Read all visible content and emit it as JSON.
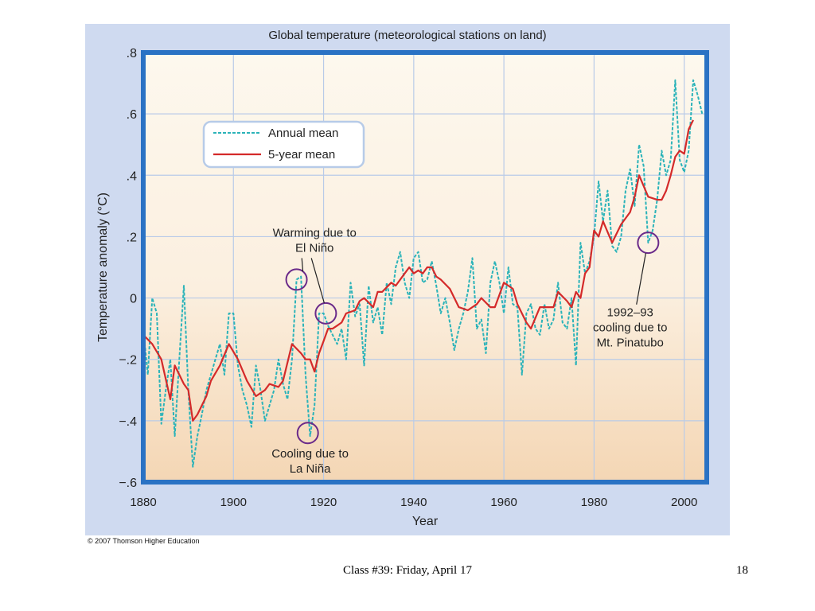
{
  "chart_data": {
    "type": "line",
    "title": "Global temperature (meteorological stations on land)",
    "xlabel": "Year",
    "ylabel": "Temperature anomaly (°C)",
    "xlim": [
      1880,
      2005
    ],
    "ylim": [
      -0.6,
      0.8
    ],
    "x_ticks": [
      1880,
      1900,
      1920,
      1940,
      1960,
      1980,
      2000
    ],
    "y_ticks": [
      -0.6,
      -0.4,
      -0.2,
      0,
      0.2,
      0.4,
      0.6,
      0.8
    ],
    "y_tick_labels": [
      "−.6",
      "−.4",
      "−.2",
      "0",
      ".2",
      ".4",
      ".6",
      ".8"
    ],
    "grid": true,
    "legend_position": "top-left",
    "series": [
      {
        "name": "Annual mean",
        "style": "dashed",
        "color": "#2bb3b9",
        "x": [
          1880,
          1881,
          1882,
          1883,
          1884,
          1885,
          1886,
          1887,
          1888,
          1889,
          1890,
          1891,
          1892,
          1893,
          1894,
          1895,
          1896,
          1897,
          1898,
          1899,
          1900,
          1901,
          1902,
          1903,
          1904,
          1905,
          1906,
          1907,
          1908,
          1909,
          1910,
          1911,
          1912,
          1913,
          1914,
          1915,
          1916,
          1917,
          1918,
          1919,
          1920,
          1921,
          1922,
          1923,
          1924,
          1925,
          1926,
          1927,
          1928,
          1929,
          1930,
          1931,
          1932,
          1933,
          1934,
          1935,
          1936,
          1937,
          1938,
          1939,
          1940,
          1941,
          1942,
          1943,
          1944,
          1945,
          1946,
          1947,
          1948,
          1949,
          1950,
          1951,
          1952,
          1953,
          1954,
          1955,
          1956,
          1957,
          1958,
          1959,
          1960,
          1961,
          1962,
          1963,
          1964,
          1965,
          1966,
          1967,
          1968,
          1969,
          1970,
          1971,
          1972,
          1973,
          1974,
          1975,
          1976,
          1977,
          1978,
          1979,
          1980,
          1981,
          1982,
          1983,
          1984,
          1985,
          1986,
          1987,
          1988,
          1989,
          1990,
          1991,
          1992,
          1993,
          1994,
          1995,
          1996,
          1997,
          1998,
          1999,
          2000,
          2001,
          2002,
          2003,
          2004
        ],
        "values": [
          -0.1,
          -0.25,
          0.0,
          -0.05,
          -0.41,
          -0.3,
          -0.2,
          -0.45,
          -0.2,
          0.04,
          -0.3,
          -0.55,
          -0.45,
          -0.38,
          -0.3,
          -0.25,
          -0.2,
          -0.15,
          -0.25,
          -0.05,
          -0.05,
          -0.22,
          -0.3,
          -0.35,
          -0.42,
          -0.22,
          -0.3,
          -0.4,
          -0.35,
          -0.3,
          -0.2,
          -0.28,
          -0.33,
          -0.2,
          0.06,
          0.07,
          -0.25,
          -0.45,
          -0.35,
          -0.05,
          -0.05,
          -0.09,
          -0.12,
          -0.15,
          -0.1,
          -0.2,
          0.05,
          -0.06,
          -0.02,
          -0.22,
          0.04,
          -0.08,
          -0.03,
          -0.12,
          0.05,
          -0.02,
          0.1,
          0.15,
          0.05,
          0.0,
          0.13,
          0.15,
          0.05,
          0.06,
          0.12,
          0.04,
          -0.05,
          0.0,
          -0.08,
          -0.17,
          -0.1,
          -0.05,
          0.02,
          0.13,
          -0.1,
          -0.07,
          -0.18,
          0.05,
          0.12,
          0.05,
          -0.05,
          0.1,
          -0.02,
          -0.03,
          -0.25,
          -0.05,
          -0.02,
          -0.1,
          -0.12,
          -0.02,
          -0.1,
          -0.07,
          0.05,
          -0.08,
          -0.1,
          0.0,
          -0.22,
          0.18,
          0.08,
          0.12,
          0.2,
          0.38,
          0.25,
          0.35,
          0.17,
          0.15,
          0.2,
          0.35,
          0.42,
          0.3,
          0.5,
          0.43,
          0.18,
          0.22,
          0.32,
          0.48,
          0.4,
          0.45,
          0.71,
          0.45,
          0.41,
          0.48,
          0.71,
          0.66,
          0.6
        ]
      },
      {
        "name": "5-year mean",
        "style": "solid",
        "color": "#d42a2a",
        "x": [
          1880,
          1882,
          1884,
          1886,
          1887,
          1889,
          1890,
          1891,
          1892,
          1894,
          1895,
          1897,
          1899,
          1901,
          1903,
          1905,
          1907,
          1908,
          1910,
          1911,
          1913,
          1915,
          1916,
          1917,
          1918,
          1919,
          1920,
          1921,
          1922,
          1923,
          1924,
          1925,
          1927,
          1928,
          1929,
          1931,
          1932,
          1933,
          1935,
          1936,
          1938,
          1939,
          1940,
          1941,
          1942,
          1943,
          1944,
          1945,
          1946,
          1948,
          1950,
          1952,
          1954,
          1955,
          1957,
          1958,
          1960,
          1962,
          1963,
          1965,
          1966,
          1968,
          1971,
          1972,
          1974,
          1975,
          1976,
          1977,
          1978,
          1979,
          1980,
          1981,
          1982,
          1984,
          1986,
          1988,
          1989,
          1990,
          1992,
          1994,
          1995,
          1996,
          1997,
          1998,
          1999,
          2000,
          2001,
          2002
        ],
        "values": [
          -0.12,
          -0.15,
          -0.2,
          -0.33,
          -0.22,
          -0.28,
          -0.3,
          -0.4,
          -0.38,
          -0.32,
          -0.27,
          -0.22,
          -0.15,
          -0.2,
          -0.27,
          -0.32,
          -0.3,
          -0.28,
          -0.29,
          -0.27,
          -0.15,
          -0.18,
          -0.2,
          -0.2,
          -0.24,
          -0.18,
          -0.14,
          -0.1,
          -0.1,
          -0.09,
          -0.08,
          -0.05,
          -0.04,
          -0.01,
          0.0,
          -0.03,
          0.02,
          0.02,
          0.05,
          0.04,
          0.08,
          0.1,
          0.08,
          0.09,
          0.08,
          0.1,
          0.1,
          0.07,
          0.06,
          0.03,
          -0.03,
          -0.04,
          -0.02,
          0.0,
          -0.03,
          -0.03,
          0.05,
          0.03,
          -0.02,
          -0.08,
          -0.1,
          -0.03,
          -0.03,
          0.02,
          -0.01,
          -0.03,
          0.02,
          0.0,
          0.08,
          0.1,
          0.22,
          0.2,
          0.25,
          0.18,
          0.24,
          0.28,
          0.33,
          0.4,
          0.33,
          0.32,
          0.32,
          0.35,
          0.4,
          0.46,
          0.48,
          0.47,
          0.55,
          0.58
        ]
      }
    ],
    "annotations": [
      {
        "text": "Warming due to\nEl Niño",
        "points": [
          {
            "x": 1914,
            "y": 0.06
          },
          {
            "x": 1920.5,
            "y": -0.05
          }
        ],
        "label_pos": {
          "x": 1918,
          "y": 0.2
        }
      },
      {
        "text": "Cooling due to\nLa Niña",
        "points": [
          {
            "x": 1916.5,
            "y": -0.44
          }
        ],
        "label_pos": {
          "x": 1917,
          "y": -0.52
        }
      },
      {
        "text": "1992–93\ncooling due to\nMt. Pinatubo",
        "points": [
          {
            "x": 1992,
            "y": 0.18
          }
        ],
        "label_pos": {
          "x": 1988,
          "y": -0.06
        }
      }
    ]
  },
  "footer": {
    "caption": "Class #39: Friday, April 17",
    "slide_number": "18",
    "copyright": "© 2007 Thomson Higher Education"
  },
  "colors": {
    "panel_background": "#cfdaf0",
    "frame": "#2a72c4",
    "annual_mean": "#2bb3b9",
    "five_year_mean": "#d42a2a",
    "annotation_circle": "#6a2a8a"
  }
}
